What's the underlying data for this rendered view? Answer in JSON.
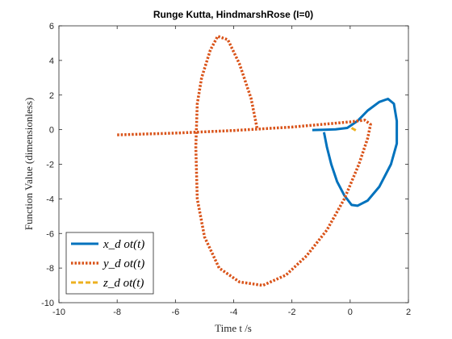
{
  "chart_data": {
    "type": "line",
    "title": "Runge Kutta, HindmarshRose (I=0)",
    "xlabel": "Time t /s",
    "ylabel": "Function Value (dimensionless)",
    "xlim": [
      -10,
      2
    ],
    "ylim": [
      -10,
      6
    ],
    "xticks": [
      -10,
      -8,
      -6,
      -4,
      -2,
      0,
      2
    ],
    "yticks": [
      -10,
      -8,
      -6,
      -4,
      -2,
      0,
      2,
      4,
      6
    ],
    "grid": false,
    "legend_position": "bottom-left",
    "series": [
      {
        "name": "x_dot(t)",
        "legend_label": "x_d ot(t)",
        "color": "#0072BD",
        "style": "solid",
        "points": [
          [
            -1.3,
            -0.02
          ],
          [
            -0.9,
            -0.01
          ],
          [
            -0.5,
            0.02
          ],
          [
            -0.1,
            0.1
          ],
          [
            0.25,
            0.5
          ],
          [
            0.6,
            1.1
          ],
          [
            1.0,
            1.6
          ],
          [
            1.3,
            1.78
          ],
          [
            1.5,
            1.5
          ],
          [
            1.6,
            0.5
          ],
          [
            1.6,
            -0.8
          ],
          [
            1.4,
            -2.0
          ],
          [
            1.0,
            -3.3
          ],
          [
            0.6,
            -4.1
          ],
          [
            0.25,
            -4.4
          ],
          [
            0.05,
            -4.35
          ],
          [
            -0.2,
            -3.8
          ],
          [
            -0.45,
            -3.0
          ],
          [
            -0.65,
            -2.0
          ],
          [
            -0.8,
            -1.0
          ],
          [
            -0.9,
            -0.15
          ]
        ]
      },
      {
        "name": "y_dot(t)",
        "legend_label": "y_d ot(t)",
        "color": "#D95319",
        "style": "dotted",
        "points": [
          [
            -8.0,
            -0.3
          ],
          [
            -6.0,
            -0.2
          ],
          [
            -4.0,
            -0.05
          ],
          [
            -2.0,
            0.15
          ],
          [
            0.0,
            0.45
          ],
          [
            0.5,
            0.55
          ],
          [
            0.7,
            0.3
          ],
          [
            0.6,
            -0.5
          ],
          [
            0.3,
            -2.0
          ],
          [
            -0.2,
            -4.0
          ],
          [
            -0.8,
            -5.8
          ],
          [
            -1.5,
            -7.3
          ],
          [
            -2.2,
            -8.4
          ],
          [
            -3.0,
            -9.0
          ],
          [
            -3.8,
            -8.8
          ],
          [
            -4.5,
            -8.0
          ],
          [
            -5.0,
            -6.2
          ],
          [
            -5.25,
            -4.0
          ],
          [
            -5.3,
            -1.0
          ],
          [
            -5.25,
            1.5
          ],
          [
            -5.1,
            3.0
          ],
          [
            -4.8,
            4.6
          ],
          [
            -4.55,
            5.4
          ],
          [
            -4.2,
            5.2
          ],
          [
            -3.8,
            3.8
          ],
          [
            -3.4,
            1.8
          ],
          [
            -3.2,
            0.1
          ]
        ]
      },
      {
        "name": "z_dot(t)",
        "legend_label": "z_d ot(t)",
        "color": "#EDB120",
        "style": "dashed",
        "points": [
          [
            0.05,
            0.1
          ],
          [
            0.1,
            0.05
          ],
          [
            0.15,
            0.0
          ],
          [
            0.2,
            -0.05
          ]
        ]
      }
    ]
  }
}
